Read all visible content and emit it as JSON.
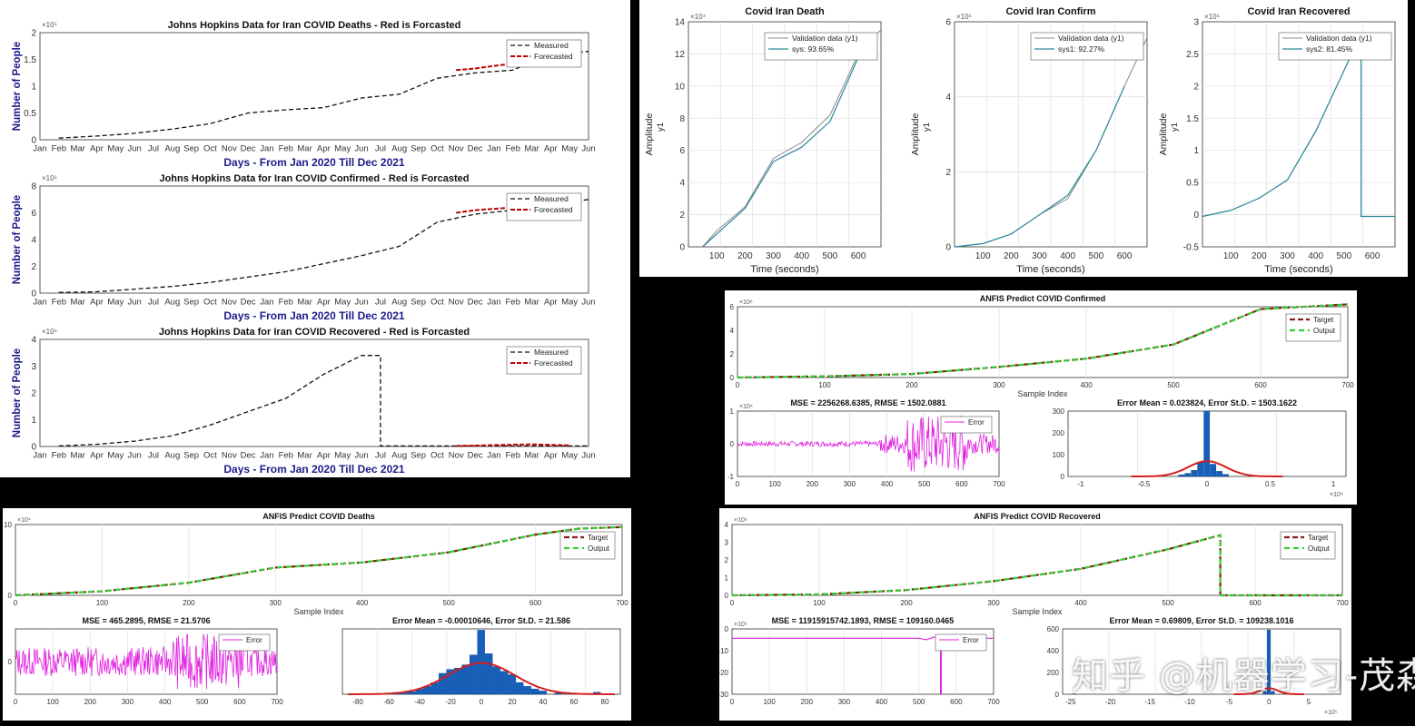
{
  "watermark": "知乎 @机器学习-茂森",
  "month_ticks": [
    "Jan",
    "Feb",
    "Mar",
    "Apr",
    "May",
    "Jun",
    "Jul",
    "Aug",
    "Sep",
    "Oct",
    "Nov",
    "Dec",
    "Jan",
    "Feb",
    "Mar",
    "Apr",
    "May",
    "Jun",
    "Jul",
    "Aug",
    "Sep",
    "Oct",
    "Nov",
    "Dec",
    "Jan",
    "Feb",
    "Mar",
    "Apr",
    "May",
    "Jun"
  ],
  "colors": {
    "measured": "#111111",
    "forecast": "#c00000",
    "target": "#8b1a1a",
    "output": "#33cc33",
    "error": "#e020e0",
    "hist": "#1560bd",
    "fit": "#d42020",
    "validation": "#888888",
    "sys": "#2a8a9a"
  },
  "chart_data": [
    {
      "id": "jh_deaths",
      "type": "line",
      "title": "Johns Hopkins Data for Iran COVID Deaths - Red is Forcasted",
      "xlabel": "Days - From Jan 2020 Till Dec 2021",
      "ylabel": "Number of People",
      "exponent": "×10⁵",
      "ylim": [
        0,
        2
      ],
      "yticks": [
        "0",
        "0.5",
        "1",
        "1.5",
        "2"
      ],
      "legend": [
        "Measured",
        "Forecasted"
      ],
      "legend_position": "top-right",
      "series": [
        {
          "name": "Measured",
          "role": "measured",
          "x": [
            2,
            4,
            6,
            8,
            10,
            12,
            14,
            16,
            18,
            20,
            22,
            24,
            26,
            28,
            30
          ],
          "y": [
            0.03,
            0.07,
            0.12,
            0.2,
            0.3,
            0.5,
            0.56,
            0.6,
            0.78,
            0.85,
            1.15,
            1.25,
            1.3,
            1.6,
            1.65
          ]
        },
        {
          "name": "Forecasted",
          "role": "forecast",
          "x": [
            23,
            24,
            25,
            26
          ],
          "y": [
            1.3,
            1.33,
            1.38,
            1.42
          ]
        }
      ]
    },
    {
      "id": "jh_confirmed",
      "type": "line",
      "title": "Johns Hopkins Data for Iran COVID Confirmed - Red is Forcasted",
      "xlabel": "Days - From Jan 2020 Till Dec 2021",
      "ylabel": "Number of People",
      "exponent": "×10⁶",
      "ylim": [
        0,
        8
      ],
      "yticks": [
        "0",
        "2",
        "4",
        "6",
        "8"
      ],
      "legend": [
        "Measured",
        "Forecasted"
      ],
      "legend_position": "top-right",
      "series": [
        {
          "name": "Measured",
          "role": "measured",
          "x": [
            2,
            4,
            6,
            8,
            10,
            12,
            14,
            16,
            18,
            20,
            22,
            24,
            26,
            28,
            30
          ],
          "y": [
            0.05,
            0.1,
            0.3,
            0.5,
            0.8,
            1.2,
            1.6,
            2.2,
            2.8,
            3.5,
            5.3,
            5.9,
            6.2,
            6.6,
            7
          ]
        },
        {
          "name": "Forecasted",
          "role": "forecast",
          "x": [
            23,
            24,
            25,
            26,
            27
          ],
          "y": [
            6.0,
            6.2,
            6.3,
            6.4,
            6.5
          ]
        }
      ]
    },
    {
      "id": "jh_recovered",
      "type": "line",
      "title": "Johns Hopkins Data for Iran COVID Recovered - Red is Forcasted",
      "xlabel": "Days - From Jan 2020 Till Dec 2021",
      "ylabel": "Number of People",
      "exponent": "×10⁶",
      "ylim": [
        0,
        4
      ],
      "yticks": [
        "0",
        "1",
        "2",
        "3",
        "4"
      ],
      "legend": [
        "Measured",
        "Forecasted"
      ],
      "legend_position": "top-right",
      "series": [
        {
          "name": "Measured",
          "role": "measured",
          "x": [
            2,
            4,
            6,
            8,
            10,
            12,
            14,
            16,
            18,
            19,
            19,
            22,
            24,
            26,
            30
          ],
          "y": [
            0.02,
            0.08,
            0.2,
            0.4,
            0.8,
            1.3,
            1.8,
            2.7,
            3.4,
            3.4,
            0.02,
            0.02,
            0.02,
            0.02,
            0.02
          ]
        },
        {
          "name": "Forecasted",
          "role": "forecast",
          "x": [
            23,
            25,
            27,
            29
          ],
          "y": [
            0.02,
            0.05,
            0.08,
            0.04
          ]
        }
      ]
    },
    {
      "id": "id_death",
      "type": "line",
      "title": "Covid Iran Death",
      "xlabel": "Time (seconds)",
      "ylabel": "Amplitude",
      "exponent": "×10⁴",
      "xlim": [
        0,
        680
      ],
      "ylim": [
        0,
        14
      ],
      "xticks": [
        "100",
        "200",
        "300",
        "400",
        "500",
        "600"
      ],
      "yticks": [
        "0",
        "2",
        "4",
        "6",
        "8",
        "10",
        "12",
        "14"
      ],
      "legend": [
        "Validation data (y1)",
        "sys: 93.65%"
      ],
      "y1": "y1",
      "series": [
        {
          "name": "Validation data (y1)",
          "role": "validation",
          "x": [
            50,
            100,
            200,
            300,
            400,
            500,
            600,
            680
          ],
          "y": [
            0,
            1,
            2.5,
            5.5,
            6.5,
            8.2,
            12,
            13.5
          ]
        },
        {
          "name": "sys: 93.65%",
          "role": "sys",
          "x": [
            50,
            100,
            200,
            300,
            400,
            500,
            600
          ],
          "y": [
            0,
            0.8,
            2.4,
            5.3,
            6.2,
            7.8,
            11.8
          ]
        }
      ]
    },
    {
      "id": "id_confirm",
      "type": "line",
      "title": "Covid Iran Confirm",
      "xlabel": "Time (seconds)",
      "ylabel": "Amplitude",
      "exponent": "×10⁶",
      "xlim": [
        0,
        680
      ],
      "ylim": [
        0,
        7
      ],
      "xticks": [
        "100",
        "200",
        "300",
        "400",
        "500",
        "600"
      ],
      "yticks": [
        "0",
        "2",
        "4",
        "6"
      ],
      "legend": [
        "Validation data (y1)",
        "sys1: 92.27%"
      ],
      "y1": "y1",
      "series": [
        {
          "name": "Validation data (y1)",
          "role": "validation",
          "x": [
            0,
            100,
            200,
            300,
            400,
            500,
            600,
            680
          ],
          "y": [
            0,
            0.1,
            0.4,
            1,
            1.5,
            3,
            5,
            6.5
          ]
        },
        {
          "name": "sys1: 92.27%",
          "role": "sys",
          "x": [
            0,
            100,
            200,
            300,
            400,
            500,
            600
          ],
          "y": [
            0,
            0.1,
            0.4,
            1,
            1.6,
            3,
            5
          ]
        }
      ]
    },
    {
      "id": "id_recovered",
      "type": "line",
      "title": "Covid Iran Recovered",
      "xlabel": "Time (seconds)",
      "ylabel": "Amplitude",
      "exponent": "×10⁶",
      "xlim": [
        0,
        680
      ],
      "ylim": [
        -0.5,
        3.2
      ],
      "xticks": [
        "100",
        "200",
        "300",
        "400",
        "500",
        "600"
      ],
      "yticks": [
        "-0.5",
        "0",
        "0.5",
        "1",
        "1.5",
        "2",
        "2.5",
        "3"
      ],
      "legend": [
        "Validation data (y1)",
        "sys2: 81.45%"
      ],
      "y1": "y1",
      "series": [
        {
          "name": "Validation data (y1)",
          "role": "validation",
          "x": [
            0,
            100,
            200,
            300,
            400,
            500,
            560,
            560,
            680
          ],
          "y": [
            0,
            0.1,
            0.3,
            0.6,
            1.4,
            2.4,
            3,
            0,
            0
          ]
        },
        {
          "name": "sys2: 81.45%",
          "role": "sys",
          "x": [
            0,
            100,
            200,
            300,
            400,
            500,
            560,
            560,
            680
          ],
          "y": [
            0,
            0.1,
            0.3,
            0.6,
            1.4,
            2.4,
            3,
            0,
            0
          ]
        }
      ]
    },
    {
      "id": "anfis_confirmed",
      "type": "line",
      "title": "ANFIS Predict COVID Confirmed",
      "xlabel": "Sample Index",
      "exponent": "×10⁶",
      "xlim": [
        0,
        700
      ],
      "ylim": [
        0,
        6
      ],
      "xticks": [
        "0",
        "100",
        "200",
        "300",
        "400",
        "500",
        "600",
        "700"
      ],
      "yticks": [
        "0",
        "2",
        "4",
        "6"
      ],
      "legend": [
        "Target",
        "Output"
      ],
      "series": [
        {
          "name": "Target",
          "role": "target",
          "x": [
            0,
            100,
            200,
            300,
            400,
            500,
            600,
            700
          ],
          "y": [
            0,
            0.1,
            0.3,
            0.9,
            1.6,
            2.8,
            5.8,
            6.2
          ]
        },
        {
          "name": "Output",
          "role": "output",
          "x": [
            0,
            100,
            200,
            300,
            400,
            500,
            600,
            700
          ],
          "y": [
            0,
            0.1,
            0.3,
            0.9,
            1.6,
            2.8,
            5.8,
            6.2
          ]
        }
      ]
    },
    {
      "id": "anfis_confirmed_err",
      "type": "line",
      "title": "MSE = 2256268.6385, RMSE = 1502.0881",
      "exponent": "×10⁴",
      "xlim": [
        0,
        700
      ],
      "ylim": [
        -1,
        1
      ],
      "xticks": [
        "0",
        "100",
        "200",
        "300",
        "400",
        "500",
        "600",
        "700"
      ],
      "yticks": [
        "-1",
        "0",
        "1"
      ],
      "legend": [
        "Error"
      ],
      "series": [
        {
          "name": "Error",
          "role": "error"
        }
      ]
    },
    {
      "id": "anfis_confirmed_hist",
      "type": "bar",
      "title": "Error Mean = 0.023824, Error St.D. = 1503.1622",
      "exponent": "×10⁴",
      "xlim": [
        -1.1,
        1.1
      ],
      "ylim": [
        0,
        320
      ],
      "xticks": [
        "-1",
        "-0.5",
        "0",
        "0.5",
        "1"
      ],
      "yticks": [
        "0",
        "100",
        "200",
        "300"
      ],
      "bins": [
        {
          "x": -0.2,
          "y": 8
        },
        {
          "x": -0.15,
          "y": 15
        },
        {
          "x": -0.1,
          "y": 30
        },
        {
          "x": -0.05,
          "y": 70
        },
        {
          "x": 0,
          "y": 320
        },
        {
          "x": 0.05,
          "y": 60
        },
        {
          "x": 0.1,
          "y": 25
        },
        {
          "x": 0.15,
          "y": 10
        }
      ]
    },
    {
      "id": "anfis_deaths",
      "type": "line",
      "title": "ANFIS Predict COVID Deaths",
      "xlabel": "Sample Index",
      "exponent": "×10⁴",
      "xlim": [
        0,
        700
      ],
      "ylim": [
        0,
        14
      ],
      "xticks": [
        "0",
        "100",
        "200",
        "300",
        "400",
        "500",
        "600",
        "700"
      ],
      "yticks": [
        "0",
        "10"
      ],
      "legend": [
        "Target",
        "Output"
      ],
      "series": [
        {
          "name": "Target",
          "role": "target",
          "x": [
            0,
            100,
            200,
            300,
            400,
            500,
            600,
            650,
            700
          ],
          "y": [
            0,
            0.8,
            2.5,
            5.5,
            6.5,
            8.5,
            12,
            13.2,
            13.5
          ]
        },
        {
          "name": "Output",
          "role": "output",
          "x": [
            0,
            100,
            200,
            300,
            400,
            500,
            600,
            650,
            700
          ],
          "y": [
            0,
            0.8,
            2.5,
            5.5,
            6.5,
            8.5,
            12,
            13.2,
            13.5
          ]
        }
      ]
    },
    {
      "id": "anfis_deaths_err",
      "type": "line",
      "title": "MSE = 465.2895, RMSE = 21.5706",
      "xlim": [
        0,
        700
      ],
      "ylim": [
        -100,
        100
      ],
      "xticks": [
        "0",
        "100",
        "200",
        "300",
        "400",
        "500",
        "600",
        "700"
      ],
      "yticks": [
        "0"
      ],
      "legend": [
        "Error"
      ],
      "series": [
        {
          "name": "Error",
          "role": "error"
        }
      ]
    },
    {
      "id": "anfis_deaths_hist",
      "type": "bar",
      "title": "Error Mean = -0.00010646, Error St.D. = 21.586",
      "xlim": [
        -90,
        90
      ],
      "ylim": [
        0,
        100
      ],
      "xticks": [
        "-80",
        "-60",
        "-40",
        "-20",
        "0",
        "20",
        "40",
        "60",
        "80"
      ],
      "bins": [
        {
          "x": -55,
          "y": 2
        },
        {
          "x": -50,
          "y": 3
        },
        {
          "x": -45,
          "y": 4
        },
        {
          "x": -40,
          "y": 8
        },
        {
          "x": -35,
          "y": 12
        },
        {
          "x": -30,
          "y": 18
        },
        {
          "x": -25,
          "y": 32
        },
        {
          "x": -20,
          "y": 38
        },
        {
          "x": -15,
          "y": 40
        },
        {
          "x": -10,
          "y": 45
        },
        {
          "x": -5,
          "y": 60
        },
        {
          "x": 0,
          "y": 98
        },
        {
          "x": 5,
          "y": 62
        },
        {
          "x": 10,
          "y": 42
        },
        {
          "x": 15,
          "y": 35
        },
        {
          "x": 20,
          "y": 30
        },
        {
          "x": 25,
          "y": 18
        },
        {
          "x": 30,
          "y": 12
        },
        {
          "x": 35,
          "y": 8
        },
        {
          "x": 40,
          "y": 5
        },
        {
          "x": 50,
          "y": 2
        },
        {
          "x": 60,
          "y": 1
        },
        {
          "x": 75,
          "y": 3
        }
      ]
    },
    {
      "id": "anfis_recovered",
      "type": "line",
      "title": "ANFIS Predict COVID Recovered",
      "xlabel": "Sample Index",
      "exponent": "×10⁶",
      "xlim": [
        0,
        700
      ],
      "ylim": [
        0,
        4
      ],
      "xticks": [
        "0",
        "100",
        "200",
        "300",
        "400",
        "500",
        "600",
        "700"
      ],
      "yticks": [
        "0",
        "1",
        "2",
        "3",
        "4"
      ],
      "legend": [
        "Target",
        "Output"
      ],
      "series": [
        {
          "name": "Target",
          "role": "target",
          "x": [
            0,
            100,
            200,
            300,
            400,
            500,
            560,
            560,
            700
          ],
          "y": [
            0,
            0.05,
            0.3,
            0.8,
            1.5,
            2.6,
            3.4,
            0,
            0
          ]
        },
        {
          "name": "Output",
          "role": "output",
          "x": [
            0,
            100,
            200,
            300,
            400,
            500,
            560,
            560,
            700
          ],
          "y": [
            0,
            0.05,
            0.3,
            0.8,
            1.5,
            2.6,
            3.4,
            0,
            0
          ]
        }
      ]
    },
    {
      "id": "anfis_recovered_err",
      "type": "line",
      "title": "MSE = 11915915742.1893, RMSE = 109160.0465",
      "exponent": "×10⁵",
      "xlim": [
        0,
        700
      ],
      "ylim": [
        -30,
        5
      ],
      "xticks": [
        "0",
        "100",
        "200",
        "300",
        "400",
        "500",
        "600",
        "700"
      ],
      "yticks": [
        "0",
        "-10",
        "-20",
        "-30"
      ],
      "legend": [
        "Error"
      ],
      "series": [
        {
          "name": "Error",
          "role": "error"
        }
      ]
    },
    {
      "id": "anfis_recovered_hist",
      "type": "bar",
      "title": "Error Mean = 0.69809, Error St.D. = 109238.1016",
      "exponent": "×10⁵",
      "xlim": [
        -26,
        9
      ],
      "ylim": [
        0,
        650
      ],
      "xticks": [
        "-25",
        "-20",
        "-15",
        "-10",
        "-5",
        "0",
        "5"
      ],
      "yticks": [
        "0",
        "200",
        "400",
        "600"
      ],
      "bins": [
        {
          "x": -0.5,
          "y": 30
        },
        {
          "x": 0,
          "y": 640
        },
        {
          "x": 0.5,
          "y": 30
        },
        {
          "x": -24.5,
          "y": 5
        }
      ]
    }
  ]
}
